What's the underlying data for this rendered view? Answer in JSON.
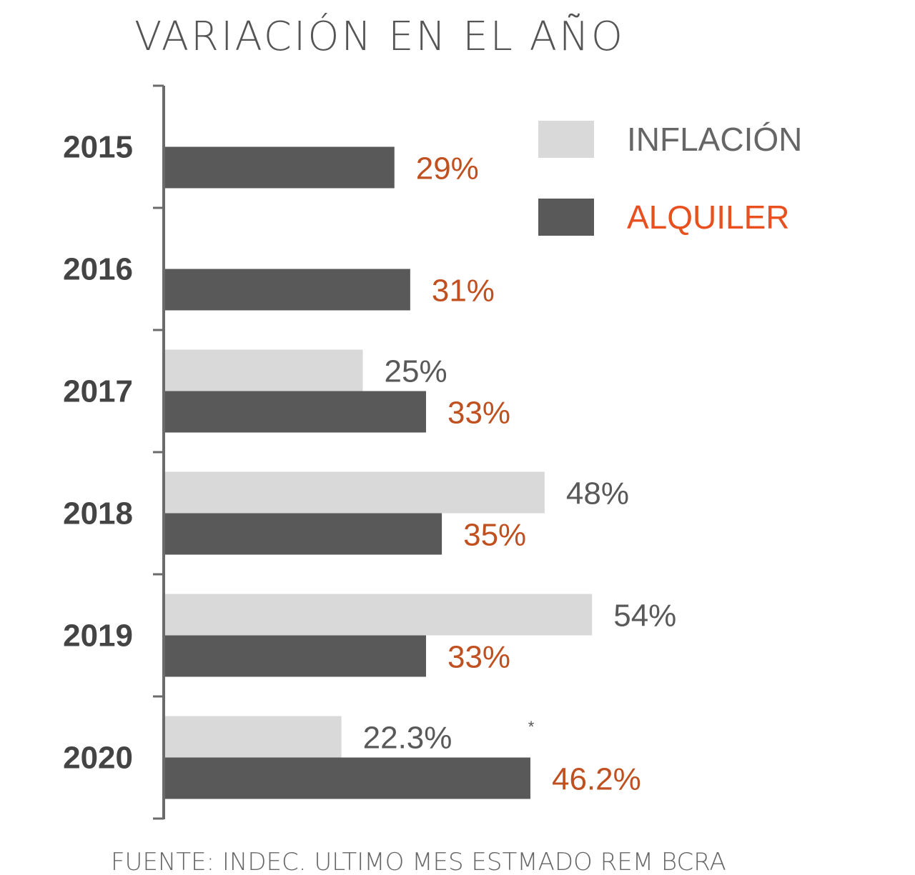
{
  "chart_data": {
    "type": "bar",
    "orientation": "horizontal",
    "title": "VARIACIÓN EN EL AÑO",
    "source": "FUENTE: INDEC. ULTIMO MES ESTMADO REM BCRA",
    "footnote_marker": "*",
    "categories": [
      "2015",
      "2016",
      "2017",
      "2018",
      "2019",
      "2020"
    ],
    "series": [
      {
        "name": "INFLACIÓN",
        "color": "#d9d9d9",
        "label_color": "#595959",
        "values": [
          null,
          null,
          25,
          48,
          54,
          22.3
        ],
        "labels": [
          "",
          "",
          "25%",
          "48%",
          "54%",
          "22.3%"
        ]
      },
      {
        "name": "ALQUILER",
        "color": "#595959",
        "label_color": "#c0501f",
        "values": [
          29,
          31,
          33,
          35,
          33,
          46.2
        ],
        "labels": [
          "29%",
          "31%",
          "33%",
          "35%",
          "33%",
          "46.2%"
        ]
      }
    ],
    "legend": {
      "position": "top-right"
    },
    "grid": false,
    "xaxis_visible": false
  }
}
